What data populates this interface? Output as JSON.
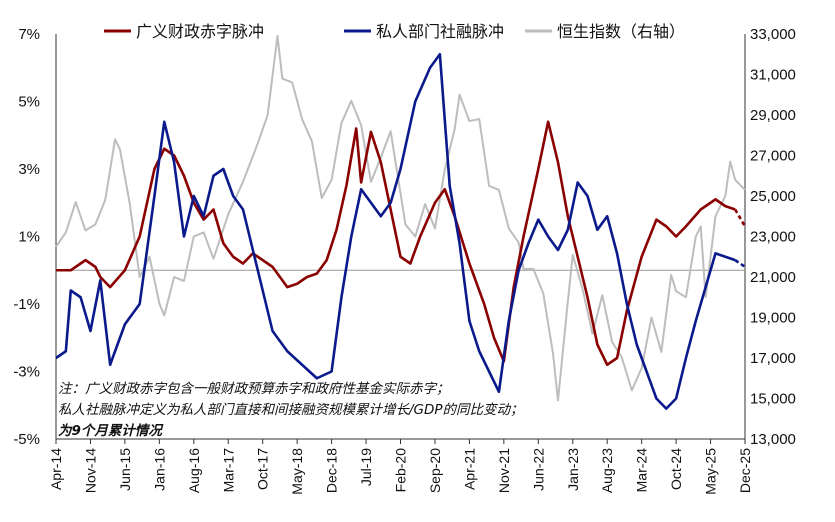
{
  "chart_data": {
    "type": "line",
    "legend": [
      {
        "name": "广义财政赤字脉冲",
        "color": "#8B0000",
        "axis": "left"
      },
      {
        "name": "私人部门社融脉冲",
        "color": "#0a1a8c",
        "axis": "left"
      },
      {
        "name": "恒生指数（右轴）",
        "color": "#bdbdbd",
        "axis": "right"
      }
    ],
    "legend_position": "top",
    "grid": false,
    "left_axis": {
      "range": [
        -5,
        7
      ],
      "tick_values": [
        7,
        5,
        3,
        1,
        -1,
        -3,
        -5
      ],
      "tick_labels": [
        "7%",
        "5%",
        "3%",
        "1%",
        "-1%",
        "-3%",
        "-5%"
      ]
    },
    "right_axis": {
      "range": [
        13000,
        33000
      ],
      "tick_values": [
        33000,
        31000,
        29000,
        27000,
        25000,
        23000,
        21000,
        19000,
        17000,
        15000,
        13000
      ],
      "tick_labels": [
        "33,000",
        "31,000",
        "29,000",
        "27,000",
        "25,000",
        "23,000",
        "21,000",
        "19,000",
        "17,000",
        "15,000",
        "13,000"
      ]
    },
    "zero_line": 0,
    "x_start": "2014-04",
    "x_end": "2025-12",
    "x_tick_labels": [
      "Apr-14",
      "Nov-14",
      "Jun-15",
      "Jan-16",
      "Aug-16",
      "Mar-17",
      "Oct-17",
      "May-18",
      "Dec-18",
      "Jul-19",
      "Feb-20",
      "Sep-20",
      "Apr-21",
      "Nov-21",
      "Jun-22",
      "Jan-23",
      "Aug-23",
      "Mar-24",
      "Oct-24",
      "May-25",
      "Dec-25"
    ],
    "series": [
      {
        "name": "广义财政赤字脉冲",
        "color": "#8B0000",
        "axis": "left",
        "dashed_from": "2025-10",
        "points": [
          [
            "2014-04",
            0.0
          ],
          [
            "2014-07",
            0.0
          ],
          [
            "2014-10",
            0.3
          ],
          [
            "2014-12",
            0.1
          ],
          [
            "2015-01",
            -0.2
          ],
          [
            "2015-03",
            -0.5
          ],
          [
            "2015-06",
            0.0
          ],
          [
            "2015-09",
            1.0
          ],
          [
            "2015-12",
            3.0
          ],
          [
            "2016-02",
            3.6
          ],
          [
            "2016-04",
            3.4
          ],
          [
            "2016-06",
            2.8
          ],
          [
            "2016-08",
            2.0
          ],
          [
            "2016-10",
            1.5
          ],
          [
            "2016-12",
            1.8
          ],
          [
            "2017-02",
            0.8
          ],
          [
            "2017-04",
            0.4
          ],
          [
            "2017-06",
            0.2
          ],
          [
            "2017-08",
            0.5
          ],
          [
            "2017-10",
            0.3
          ],
          [
            "2017-12",
            0.1
          ],
          [
            "2018-03",
            -0.5
          ],
          [
            "2018-05",
            -0.4
          ],
          [
            "2018-07",
            -0.2
          ],
          [
            "2018-09",
            -0.1
          ],
          [
            "2018-11",
            0.3
          ],
          [
            "2019-01",
            1.2
          ],
          [
            "2019-03",
            2.5
          ],
          [
            "2019-05",
            4.2
          ],
          [
            "2019-06",
            2.6
          ],
          [
            "2019-08",
            4.1
          ],
          [
            "2019-10",
            3.2
          ],
          [
            "2019-12",
            1.8
          ],
          [
            "2020-02",
            0.4
          ],
          [
            "2020-04",
            0.2
          ],
          [
            "2020-06",
            1.0
          ],
          [
            "2020-09",
            2.0
          ],
          [
            "2020-11",
            2.4
          ],
          [
            "2021-01",
            1.6
          ],
          [
            "2021-04",
            0.2
          ],
          [
            "2021-07",
            -1.0
          ],
          [
            "2021-09",
            -2.0
          ],
          [
            "2021-11",
            -2.7
          ],
          [
            "2022-01",
            -0.5
          ],
          [
            "2022-03",
            1.0
          ],
          [
            "2022-06",
            3.0
          ],
          [
            "2022-08",
            4.4
          ],
          [
            "2022-10",
            3.2
          ],
          [
            "2022-12",
            1.6
          ],
          [
            "2023-02",
            0.4
          ],
          [
            "2023-04",
            -0.8
          ],
          [
            "2023-06",
            -2.2
          ],
          [
            "2023-08",
            -2.8
          ],
          [
            "2023-10",
            -2.6
          ],
          [
            "2023-12",
            -1.2
          ],
          [
            "2024-03",
            0.4
          ],
          [
            "2024-06",
            1.5
          ],
          [
            "2024-08",
            1.3
          ],
          [
            "2024-10",
            1.0
          ],
          [
            "2024-12",
            1.3
          ],
          [
            "2025-03",
            1.8
          ],
          [
            "2025-06",
            2.1
          ],
          [
            "2025-08",
            1.9
          ],
          [
            "2025-10",
            1.8
          ],
          [
            "2025-12",
            1.3
          ]
        ]
      },
      {
        "name": "私人部门社融脉冲",
        "color": "#0a1a8c",
        "axis": "left",
        "dashed_from": "2025-10",
        "points": [
          [
            "2014-04",
            -2.6
          ],
          [
            "2014-06",
            -2.4
          ],
          [
            "2014-07",
            -0.6
          ],
          [
            "2014-09",
            -0.8
          ],
          [
            "2014-11",
            -1.8
          ],
          [
            "2015-01",
            -0.3
          ],
          [
            "2015-03",
            -2.8
          ],
          [
            "2015-06",
            -1.6
          ],
          [
            "2015-09",
            -1.0
          ],
          [
            "2015-12",
            2.2
          ],
          [
            "2016-02",
            4.4
          ],
          [
            "2016-04",
            3.2
          ],
          [
            "2016-06",
            1.0
          ],
          [
            "2016-08",
            2.2
          ],
          [
            "2016-10",
            1.6
          ],
          [
            "2016-12",
            2.8
          ],
          [
            "2017-02",
            3.0
          ],
          [
            "2017-04",
            2.2
          ],
          [
            "2017-06",
            1.8
          ],
          [
            "2017-08",
            0.6
          ],
          [
            "2017-10",
            -0.6
          ],
          [
            "2017-12",
            -1.8
          ],
          [
            "2018-03",
            -2.4
          ],
          [
            "2018-06",
            -2.8
          ],
          [
            "2018-09",
            -3.2
          ],
          [
            "2018-12",
            -3.0
          ],
          [
            "2019-02",
            -0.8
          ],
          [
            "2019-04",
            1.0
          ],
          [
            "2019-06",
            2.4
          ],
          [
            "2019-08",
            2.0
          ],
          [
            "2019-10",
            1.6
          ],
          [
            "2019-12",
            2.0
          ],
          [
            "2020-02",
            3.0
          ],
          [
            "2020-05",
            5.0
          ],
          [
            "2020-08",
            6.0
          ],
          [
            "2020-10",
            6.4
          ],
          [
            "2020-12",
            2.5
          ],
          [
            "2021-02",
            0.8
          ],
          [
            "2021-04",
            -1.5
          ],
          [
            "2021-06",
            -2.4
          ],
          [
            "2021-08",
            -3.0
          ],
          [
            "2021-10",
            -3.6
          ],
          [
            "2021-12",
            -1.5
          ],
          [
            "2022-02",
            0.0
          ],
          [
            "2022-04",
            0.8
          ],
          [
            "2022-06",
            1.5
          ],
          [
            "2022-08",
            1.0
          ],
          [
            "2022-10",
            0.6
          ],
          [
            "2022-12",
            1.2
          ],
          [
            "2023-02",
            2.6
          ],
          [
            "2023-04",
            2.2
          ],
          [
            "2023-06",
            1.2
          ],
          [
            "2023-08",
            1.6
          ],
          [
            "2023-10",
            0.5
          ],
          [
            "2023-12",
            -1.0
          ],
          [
            "2024-02",
            -2.2
          ],
          [
            "2024-04",
            -3.0
          ],
          [
            "2024-06",
            -3.8
          ],
          [
            "2024-08",
            -4.1
          ],
          [
            "2024-10",
            -3.8
          ],
          [
            "2024-12",
            -2.6
          ],
          [
            "2025-02",
            -1.5
          ],
          [
            "2025-04",
            -0.5
          ],
          [
            "2025-06",
            0.5
          ],
          [
            "2025-08",
            0.4
          ],
          [
            "2025-10",
            0.3
          ],
          [
            "2025-12",
            0.1
          ]
        ]
      },
      {
        "name": "恒生指数（右轴）",
        "color": "#bdbdbd",
        "axis": "right",
        "dashed_from": null,
        "points": [
          [
            "2014-04",
            22500
          ],
          [
            "2014-06",
            23200
          ],
          [
            "2014-08",
            24700
          ],
          [
            "2014-10",
            23300
          ],
          [
            "2014-12",
            23600
          ],
          [
            "2015-02",
            24800
          ],
          [
            "2015-04",
            27800
          ],
          [
            "2015-05",
            27300
          ],
          [
            "2015-07",
            24600
          ],
          [
            "2015-09",
            21000
          ],
          [
            "2015-11",
            22000
          ],
          [
            "2016-01",
            19700
          ],
          [
            "2016-02",
            19100
          ],
          [
            "2016-04",
            21000
          ],
          [
            "2016-06",
            20800
          ],
          [
            "2016-08",
            23000
          ],
          [
            "2016-10",
            23200
          ],
          [
            "2016-12",
            21900
          ],
          [
            "2017-03",
            24100
          ],
          [
            "2017-06",
            25700
          ],
          [
            "2017-09",
            27600
          ],
          [
            "2017-11",
            29000
          ],
          [
            "2018-01",
            32900
          ],
          [
            "2018-02",
            30800
          ],
          [
            "2018-04",
            30600
          ],
          [
            "2018-06",
            28800
          ],
          [
            "2018-08",
            27700
          ],
          [
            "2018-10",
            24900
          ],
          [
            "2018-12",
            25800
          ],
          [
            "2019-02",
            28600
          ],
          [
            "2019-04",
            29700
          ],
          [
            "2019-06",
            28500
          ],
          [
            "2019-08",
            25700
          ],
          [
            "2019-10",
            26900
          ],
          [
            "2019-12",
            28200
          ],
          [
            "2020-03",
            23600
          ],
          [
            "2020-05",
            23000
          ],
          [
            "2020-07",
            24600
          ],
          [
            "2020-09",
            23400
          ],
          [
            "2020-11",
            26300
          ],
          [
            "2021-01",
            28300
          ],
          [
            "2021-02",
            30000
          ],
          [
            "2021-04",
            28700
          ],
          [
            "2021-06",
            28800
          ],
          [
            "2021-08",
            25500
          ],
          [
            "2021-10",
            25300
          ],
          [
            "2021-12",
            23400
          ],
          [
            "2022-02",
            22700
          ],
          [
            "2022-03",
            21400
          ],
          [
            "2022-05",
            21400
          ],
          [
            "2022-07",
            20200
          ],
          [
            "2022-09",
            17200
          ],
          [
            "2022-10",
            14900
          ],
          [
            "2022-12",
            19800
          ],
          [
            "2023-01",
            22100
          ],
          [
            "2023-03",
            20400
          ],
          [
            "2023-05",
            18200
          ],
          [
            "2023-07",
            20100
          ],
          [
            "2023-09",
            17800
          ],
          [
            "2023-11",
            17000
          ],
          [
            "2024-01",
            15400
          ],
          [
            "2024-03",
            16500
          ],
          [
            "2024-05",
            19000
          ],
          [
            "2024-07",
            17300
          ],
          [
            "2024-09",
            21100
          ],
          [
            "2024-10",
            20300
          ],
          [
            "2024-12",
            20000
          ],
          [
            "2025-02",
            23000
          ],
          [
            "2025-03",
            23500
          ],
          [
            "2025-04",
            20000
          ],
          [
            "2025-06",
            24000
          ],
          [
            "2025-08",
            25000
          ],
          [
            "2025-09",
            26700
          ],
          [
            "2025-10",
            25800
          ],
          [
            "2025-12",
            25300
          ]
        ]
      }
    ],
    "annotations": [
      {
        "text": "注：广义财政赤字包含一般财政预算赤字和政府性基金实际赤字；",
        "bold": false
      },
      {
        "text": "私人社融脉冲定义为私人部门直接和间接融资规模累计增长/GDP的同比变动；",
        "bold": false
      },
      {
        "text": "为9个月累计情况",
        "bold": true
      }
    ]
  }
}
